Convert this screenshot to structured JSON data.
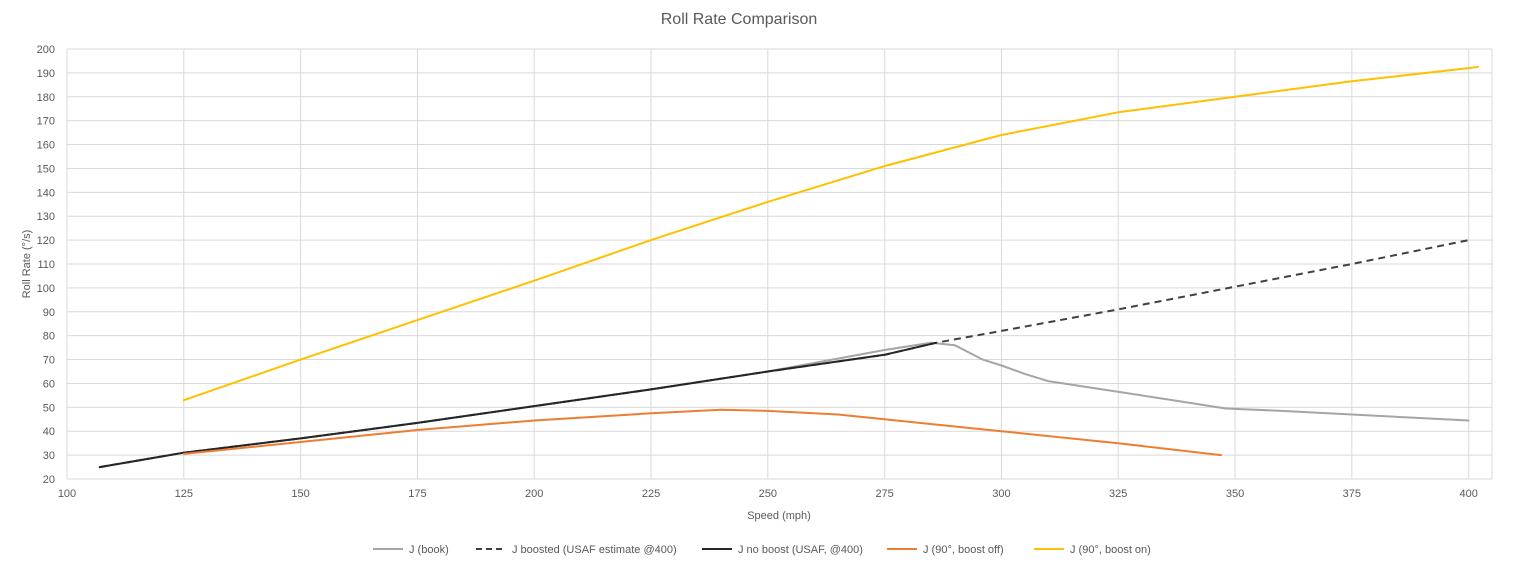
{
  "chart_data": {
    "type": "line",
    "title": "Roll Rate Comparison",
    "xlabel": "Speed (mph)",
    "ylabel": "Roll Rate (°/s)",
    "xlim": [
      100,
      405
    ],
    "ylim": [
      20,
      200
    ],
    "x_ticks": [
      100,
      125,
      150,
      175,
      200,
      225,
      250,
      275,
      300,
      325,
      350,
      375,
      400
    ],
    "y_ticks": [
      20,
      30,
      40,
      50,
      60,
      70,
      80,
      90,
      100,
      110,
      120,
      130,
      140,
      150,
      160,
      170,
      180,
      190,
      200
    ],
    "grid": true,
    "legend_position": "bottom",
    "series": [
      {
        "name": "J (book)",
        "color": "#a5a5a5",
        "dash": "solid",
        "points": [
          [
            107,
            25
          ],
          [
            125,
            31
          ],
          [
            150,
            37
          ],
          [
            175,
            43.5
          ],
          [
            200,
            50.5
          ],
          [
            225,
            57.5
          ],
          [
            250,
            65
          ],
          [
            275,
            74
          ],
          [
            285,
            77
          ],
          [
            290,
            76
          ],
          [
            293,
            73
          ],
          [
            296,
            70
          ],
          [
            300,
            67.5
          ],
          [
            305,
            64
          ],
          [
            310,
            61
          ],
          [
            320,
            58
          ],
          [
            330,
            55
          ],
          [
            340,
            52
          ],
          [
            348,
            49.5
          ],
          [
            360,
            48.5
          ],
          [
            375,
            47
          ],
          [
            390,
            45.5
          ],
          [
            400,
            44.5
          ]
        ]
      },
      {
        "name": "J boosted (USAF estimate @400)",
        "color": "#404040",
        "dash": "dashed",
        "points": [
          [
            107,
            25
          ],
          [
            125,
            31
          ],
          [
            150,
            37
          ],
          [
            175,
            43.5
          ],
          [
            200,
            50.5
          ],
          [
            225,
            57.5
          ],
          [
            250,
            65
          ],
          [
            275,
            72
          ],
          [
            286,
            77
          ],
          [
            300,
            82
          ],
          [
            325,
            91
          ],
          [
            350,
            100.5
          ],
          [
            375,
            110
          ],
          [
            400,
            120
          ]
        ]
      },
      {
        "name": "J no boost (USAF, @400)",
        "color": "#262626",
        "dash": "solid",
        "points": [
          [
            107,
            25
          ],
          [
            125,
            31
          ],
          [
            150,
            37
          ],
          [
            175,
            43.5
          ],
          [
            200,
            50.5
          ],
          [
            225,
            57.5
          ],
          [
            250,
            65
          ],
          [
            275,
            72
          ],
          [
            286,
            77
          ]
        ]
      },
      {
        "name": "J (90°, boost off)",
        "color": "#ed7d31",
        "dash": "solid",
        "points": [
          [
            125,
            30.5
          ],
          [
            150,
            35.5
          ],
          [
            175,
            40.5
          ],
          [
            200,
            44.5
          ],
          [
            225,
            47.5
          ],
          [
            240,
            49
          ],
          [
            250,
            48.5
          ],
          [
            265,
            47
          ],
          [
            275,
            45
          ],
          [
            300,
            40
          ],
          [
            325,
            35
          ],
          [
            347,
            30
          ]
        ]
      },
      {
        "name": "J (90°, boost on)",
        "color": "#ffc000",
        "dash": "solid",
        "points": [
          [
            125,
            53
          ],
          [
            150,
            70
          ],
          [
            175,
            86.5
          ],
          [
            200,
            103
          ],
          [
            225,
            120
          ],
          [
            250,
            136
          ],
          [
            275,
            151
          ],
          [
            300,
            164
          ],
          [
            325,
            173.5
          ],
          [
            350,
            180
          ],
          [
            375,
            186.5
          ],
          [
            400,
            192
          ],
          [
            402,
            192.5
          ]
        ]
      }
    ]
  }
}
